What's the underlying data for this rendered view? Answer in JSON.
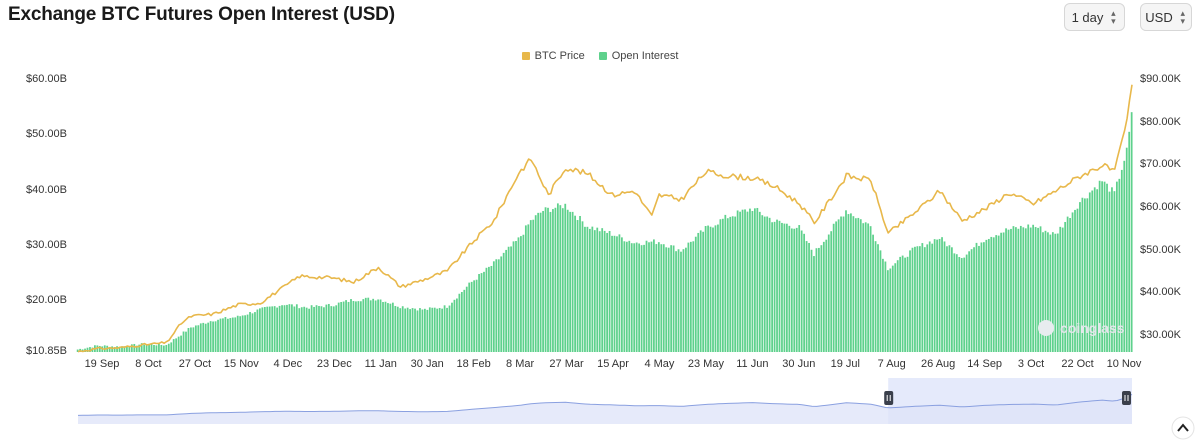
{
  "header": {
    "title": "Exchange BTC Futures Open Interest (USD)",
    "interval": "1 day",
    "currency": "USD"
  },
  "legend": {
    "price_label": "BTC Price",
    "oi_label": "Open Interest"
  },
  "colors": {
    "price": "#e8b84b",
    "open_interest": "#5ed18c",
    "navigator_fill": "#dde3f8",
    "navigator_line": "#8aa0e0",
    "navigator_window": "#cfd8f7"
  },
  "watermark": "coinglass",
  "chart_data": {
    "type": "bar",
    "title": "Exchange BTC Futures Open Interest (USD)",
    "x_ticks": [
      "19 Sep",
      "8 Oct",
      "27 Oct",
      "15 Nov",
      "4 Dec",
      "23 Dec",
      "11 Jan",
      "30 Jan",
      "18 Feb",
      "8 Mar",
      "27 Mar",
      "15 Apr",
      "4 May",
      "23 May",
      "11 Jun",
      "30 Jun",
      "19 Jul",
      "7 Aug",
      "26 Aug",
      "14 Sep",
      "3 Oct",
      "22 Oct",
      "10 Nov"
    ],
    "left_axis": {
      "ticks": [
        "$60.00B",
        "$50.00B",
        "$40.00B",
        "$30.00B",
        "$20.00B",
        "$10.85B"
      ],
      "values": [
        60,
        50,
        40,
        30,
        20,
        10.85
      ],
      "range": [
        10.85,
        60
      ]
    },
    "right_axis": {
      "ticks": [
        "$90.00K",
        "$80.00K",
        "$70.00K",
        "$60.00K",
        "$50.00K",
        "$40.00K",
        "$30.00K"
      ],
      "values": [
        90,
        80,
        70,
        60,
        50,
        40,
        30
      ],
      "range": [
        26.2,
        90
      ]
    },
    "series": [
      {
        "name": "Open Interest",
        "kind": "bar",
        "axis": "left",
        "unit": "USD billions",
        "x": [
          "2023-09-11",
          "2023-09-19",
          "2023-09-28",
          "2023-10-08",
          "2023-10-17",
          "2023-10-27",
          "2023-11-05",
          "2023-11-15",
          "2023-11-24",
          "2023-12-04",
          "2023-12-13",
          "2023-12-23",
          "2024-01-01",
          "2024-01-11",
          "2024-01-20",
          "2024-01-30",
          "2024-02-08",
          "2024-02-18",
          "2024-02-27",
          "2024-03-08",
          "2024-03-13",
          "2024-03-18",
          "2024-03-27",
          "2024-04-05",
          "2024-04-15",
          "2024-04-24",
          "2024-05-04",
          "2024-05-13",
          "2024-05-23",
          "2024-06-01",
          "2024-06-11",
          "2024-06-20",
          "2024-06-30",
          "2024-07-06",
          "2024-07-19",
          "2024-07-29",
          "2024-08-05",
          "2024-08-16",
          "2024-08-26",
          "2024-09-04",
          "2024-09-14",
          "2024-09-23",
          "2024-10-03",
          "2024-10-12",
          "2024-10-22",
          "2024-10-31",
          "2024-11-05",
          "2024-11-10",
          "2024-11-12"
        ],
        "values": [
          11.3,
          12.0,
          11.8,
          12.3,
          12.1,
          15.3,
          16.6,
          17.2,
          18.5,
          19.5,
          18.9,
          19.3,
          20.3,
          20.5,
          19.1,
          18.5,
          19.1,
          23.5,
          26.8,
          31.2,
          34.5,
          36.4,
          37.4,
          33.6,
          32.2,
          30.6,
          30.8,
          29.2,
          33.1,
          35.3,
          36.8,
          34.5,
          33.3,
          28.6,
          36.5,
          33.6,
          26.0,
          29.5,
          31.5,
          28.0,
          31.5,
          33.0,
          33.7,
          32.0,
          38.0,
          41.8,
          39.5,
          47.1,
          53.5
        ]
      },
      {
        "name": "BTC Price",
        "kind": "line",
        "axis": "right",
        "unit": "USD thousands",
        "x": [
          "2023-09-11",
          "2023-09-19",
          "2023-09-28",
          "2023-10-08",
          "2023-10-17",
          "2023-10-23",
          "2023-10-27",
          "2023-11-05",
          "2023-11-15",
          "2023-11-24",
          "2023-12-04",
          "2023-12-10",
          "2023-12-23",
          "2024-01-01",
          "2024-01-11",
          "2024-01-20",
          "2024-01-30",
          "2024-02-08",
          "2024-02-18",
          "2024-02-27",
          "2024-03-08",
          "2024-03-13",
          "2024-03-20",
          "2024-03-27",
          "2024-04-05",
          "2024-04-15",
          "2024-04-24",
          "2024-05-01",
          "2024-05-04",
          "2024-05-13",
          "2024-05-23",
          "2024-06-01",
          "2024-06-11",
          "2024-06-20",
          "2024-06-30",
          "2024-07-06",
          "2024-07-19",
          "2024-07-29",
          "2024-08-05",
          "2024-08-16",
          "2024-08-26",
          "2024-09-04",
          "2024-09-14",
          "2024-09-23",
          "2024-10-03",
          "2024-10-12",
          "2024-10-22",
          "2024-10-31",
          "2024-11-05",
          "2024-11-10",
          "2024-11-12"
        ],
        "values": [
          26.3,
          27.0,
          27.2,
          27.9,
          28.4,
          33.0,
          34.6,
          35.1,
          37.3,
          37.7,
          41.6,
          44.0,
          43.6,
          42.6,
          46.1,
          41.5,
          43.3,
          45.2,
          51.8,
          57.1,
          68.2,
          71.5,
          63.0,
          69.5,
          68.0,
          63.0,
          64.0,
          58.0,
          63.0,
          62.0,
          68.5,
          67.5,
          67.0,
          65.0,
          61.0,
          56.5,
          67.5,
          66.5,
          54.0,
          59.0,
          64.0,
          57.0,
          60.0,
          63.5,
          61.0,
          64.0,
          67.5,
          70.0,
          68.5,
          80.5,
          89.0
        ]
      }
    ],
    "grid": false,
    "legend_position": "top-center",
    "navigator": {
      "visible": true,
      "selected_start": "2024-08-05",
      "selected_end": "2024-11-12"
    }
  }
}
